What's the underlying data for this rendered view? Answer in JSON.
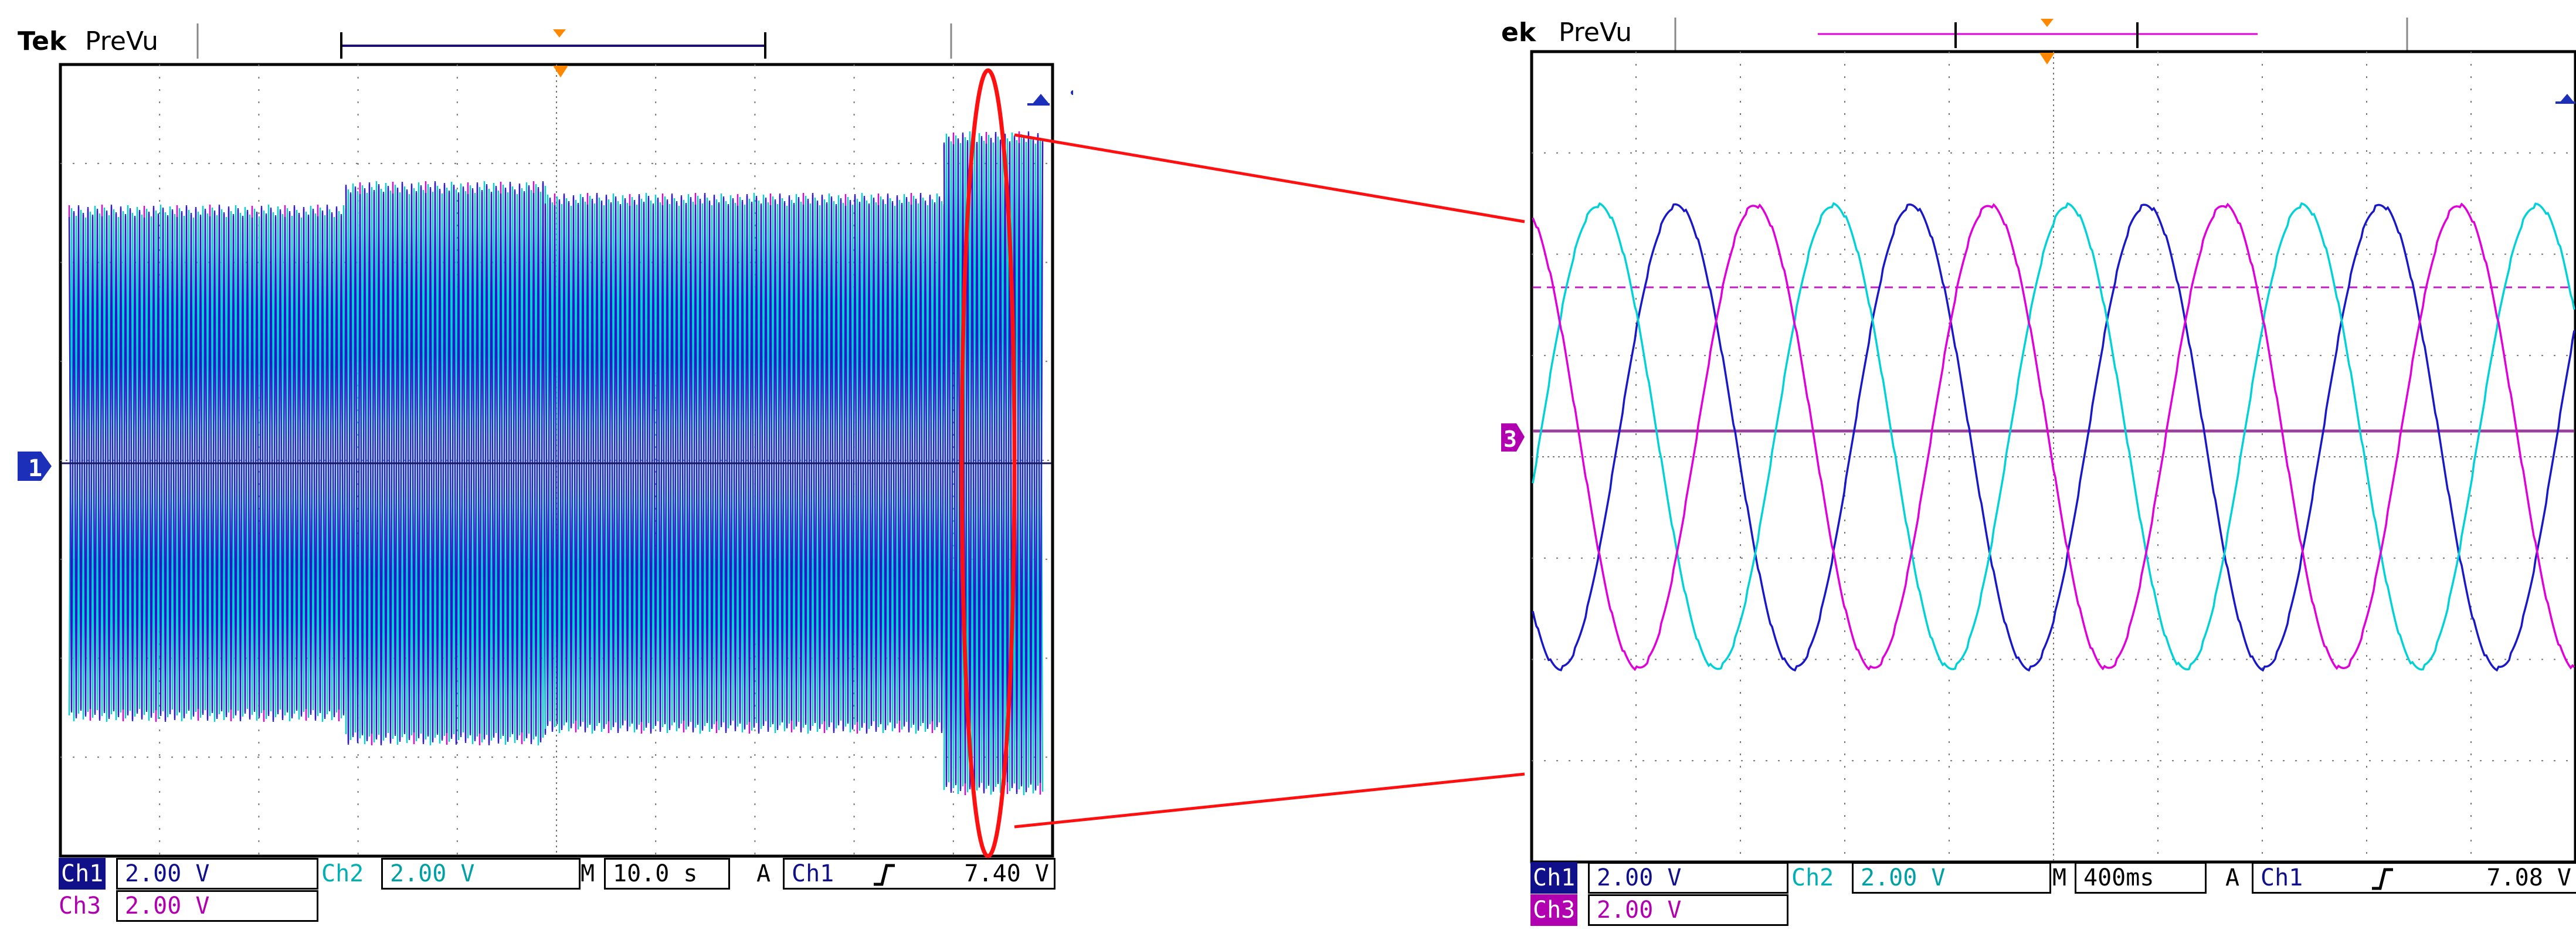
{
  "colors": {
    "ch1": "#1818c8",
    "ch2": "#00d2d6",
    "ch3": "#e000d8",
    "annotation": "#ff1010",
    "ch1_tag_bg": "#10108a",
    "ch3_tag_bg": "#b000b0"
  },
  "left_scope": {
    "brand": "Tek",
    "mode": "PreVu",
    "ch1_marker": "1",
    "readout": {
      "ch1_label": "Ch1",
      "ch1_scale": "2.00 V",
      "ch2_label": "Ch2",
      "ch2_scale": "2.00 V",
      "ch3_label": "Ch3",
      "ch3_scale": "2.00 V",
      "time_label": "M",
      "time_scale": "10.0 s",
      "trigger_label": "A",
      "trigger_source": "Ch1",
      "trigger_slope_icon": "rising-edge-icon",
      "trigger_level": "7.40 V"
    }
  },
  "right_scope": {
    "brand": "ek",
    "mode": "PreVu",
    "ch3_marker": "3",
    "readout": {
      "ch1_label": "Ch1",
      "ch1_scale": "2.00 V",
      "ch2_label": "Ch2",
      "ch2_scale": "2.00 V",
      "ch3_label": "Ch3",
      "ch3_scale": "2.00 V",
      "time_label": "M",
      "time_scale": "400ms",
      "trigger_label": "A",
      "trigger_source": "Ch1",
      "trigger_slope_icon": "rising-edge-icon",
      "trigger_level": "7.08 V"
    }
  }
}
